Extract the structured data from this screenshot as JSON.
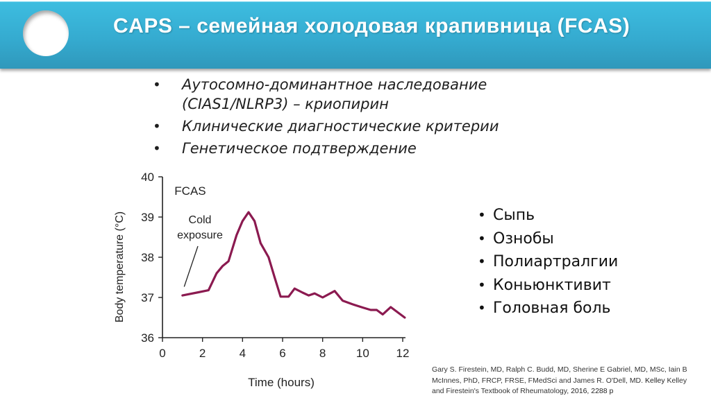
{
  "slide": {
    "title": "CAPS – семейная холодовая крапивница (FCAS)",
    "colors": {
      "header_top": "#3dbde0",
      "header_bottom": "#2f98bb",
      "line": "#8b1a50",
      "text": "#1e1e1e"
    }
  },
  "top_bullets": [
    {
      "bullet": "•",
      "lines": [
        "Аутосомно-доминантное наследование",
        "(CIAS1/NLRP3) – криопирин"
      ]
    },
    {
      "bullet": "•",
      "lines": [
        "Клинические диагностические критерии"
      ]
    },
    {
      "bullet": "•",
      "lines": [
        "Генетическое подтверждение"
      ]
    }
  ],
  "symptoms": {
    "bullet": "•",
    "items": [
      "Сыпь",
      "Ознобы",
      "Полиартралгии",
      "Коньюнктивит",
      "Головная боль"
    ]
  },
  "citation": {
    "line1": "Gary S. Firestein, MD, Ralph C. Budd, MD, Sherine E Gabriel, MD, MSc, Iain B",
    "line2": "McInnes, PhD, FRCP, FRSE, FMedSci and James R. O'Dell, MD.",
    "line2_bold": " Kelley",
    "line2_end": " Kelley",
    "line3": "and Firestein's Textbook of Rheumatology, ",
    "line3_bold": "2016, 2288 p"
  },
  "chart_data": {
    "type": "line",
    "title": "FCAS",
    "xlabel": "Time (hours)",
    "ylabel": "Body temperature (°C)",
    "xlim": [
      0,
      12
    ],
    "ylim": [
      36,
      40
    ],
    "xticks": [
      0,
      2,
      4,
      6,
      8,
      10,
      12
    ],
    "yticks": [
      36,
      37,
      38,
      39,
      40
    ],
    "grid": false,
    "legend": null,
    "annotations": [
      {
        "text": "FCAS",
        "x": 0.6,
        "y": 39.55
      },
      {
        "text": "Cold exposure",
        "x": 1.6,
        "y": 38.8,
        "pointer_to": [
          1.05,
          37.25
        ]
      }
    ],
    "series": [
      {
        "name": "Body temperature",
        "color": "#8b1a50",
        "x": [
          1.0,
          1.8,
          2.3,
          2.7,
          3.0,
          3.3,
          3.7,
          4.0,
          4.3,
          4.6,
          4.9,
          5.3,
          5.6,
          5.9,
          6.3,
          6.6,
          7.0,
          7.3,
          7.6,
          8.0,
          8.6,
          9.0,
          9.5,
          10.0,
          10.4,
          10.7,
          11.0,
          11.4,
          12.1
        ],
        "y": [
          37.05,
          37.13,
          37.18,
          37.6,
          37.78,
          37.9,
          38.55,
          38.9,
          39.12,
          38.9,
          38.35,
          38.0,
          37.5,
          37.02,
          37.02,
          37.22,
          37.12,
          37.05,
          37.1,
          37.0,
          37.16,
          36.92,
          36.83,
          36.75,
          36.69,
          36.69,
          36.58,
          36.76,
          36.5
        ]
      }
    ]
  }
}
